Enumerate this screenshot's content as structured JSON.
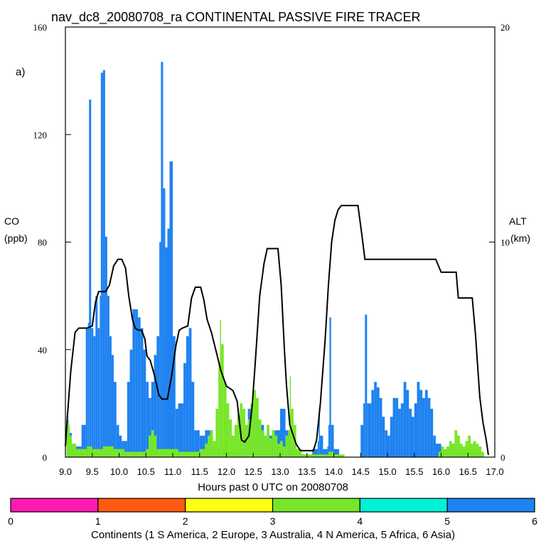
{
  "chart_data": {
    "type": "bar",
    "title": "nav_dc8_20080708_ra CONTINENTAL PASSIVE FIRE TRACER",
    "panel_label": "a)",
    "xlabel": "Hours past 0 UTC on 20080708",
    "ylabel_left": [
      "CO",
      "(ppb)"
    ],
    "ylabel_right": [
      "ALT",
      "(km)"
    ],
    "xlim": [
      9.0,
      17.0
    ],
    "ylim_left": [
      0,
      160
    ],
    "ylim_right": [
      0,
      20
    ],
    "x_ticks": [
      "9.0",
      "9.5",
      "10.0",
      "10.5",
      "11.0",
      "11.5",
      "12.0",
      "12.5",
      "13.0",
      "13.5",
      "14.0",
      "14.5",
      "15.0",
      "15.5",
      "16.0",
      "16.5",
      "17.0"
    ],
    "y_ticks_left": [
      "0",
      "40",
      "80",
      "120",
      "160"
    ],
    "y_ticks_right": [
      "0",
      "10",
      "20"
    ],
    "colors": {
      "asia": "#1e82f0",
      "n_america": "#78e628",
      "africa": "#00f0d8",
      "line": "#000000"
    },
    "series": [
      {
        "name": "CO Asia (ppb)",
        "color": "#1e82f0",
        "points": [
          [
            9.02,
            14
          ],
          [
            9.06,
            9
          ],
          [
            9.12,
            3
          ],
          [
            9.2,
            4
          ],
          [
            9.3,
            12
          ],
          [
            9.38,
            48
          ],
          [
            9.42,
            50
          ],
          [
            9.44,
            133
          ],
          [
            9.48,
            48
          ],
          [
            9.52,
            45
          ],
          [
            9.56,
            60
          ],
          [
            9.6,
            48
          ],
          [
            9.64,
            60
          ],
          [
            9.66,
            143
          ],
          [
            9.7,
            144
          ],
          [
            9.74,
            82
          ],
          [
            9.78,
            60
          ],
          [
            9.82,
            45
          ],
          [
            9.86,
            38
          ],
          [
            9.9,
            28
          ],
          [
            9.95,
            12
          ],
          [
            10.0,
            8
          ],
          [
            10.05,
            6
          ],
          [
            10.1,
            6
          ],
          [
            10.15,
            28
          ],
          [
            10.2,
            40
          ],
          [
            10.25,
            55
          ],
          [
            10.3,
            55
          ],
          [
            10.35,
            52
          ],
          [
            10.4,
            48
          ],
          [
            10.45,
            40
          ],
          [
            10.5,
            28
          ],
          [
            10.55,
            22
          ],
          [
            10.6,
            28
          ],
          [
            10.65,
            38
          ],
          [
            10.7,
            45
          ],
          [
            10.75,
            80
          ],
          [
            10.78,
            147
          ],
          [
            10.82,
            100
          ],
          [
            10.86,
            78
          ],
          [
            10.9,
            85
          ],
          [
            10.94,
            110
          ],
          [
            11.0,
            45
          ],
          [
            11.05,
            18
          ],
          [
            11.1,
            20
          ],
          [
            11.2,
            35
          ],
          [
            11.25,
            45
          ],
          [
            11.3,
            48
          ],
          [
            11.35,
            28
          ],
          [
            11.4,
            10
          ],
          [
            11.5,
            8
          ],
          [
            11.6,
            10
          ],
          [
            11.7,
            4
          ],
          [
            11.8,
            3
          ],
          [
            12.0,
            2
          ],
          [
            12.2,
            3
          ],
          [
            12.4,
            18
          ],
          [
            12.5,
            15
          ],
          [
            12.6,
            12
          ],
          [
            12.7,
            7
          ],
          [
            12.8,
            8
          ],
          [
            12.9,
            10
          ],
          [
            13.0,
            18
          ],
          [
            13.1,
            10
          ],
          [
            13.2,
            5
          ],
          [
            13.3,
            3
          ],
          [
            13.4,
            1
          ],
          [
            13.6,
            3
          ],
          [
            13.7,
            6
          ],
          [
            13.72,
            18
          ],
          [
            13.74,
            8
          ],
          [
            13.8,
            3
          ],
          [
            13.88,
            4
          ],
          [
            13.9,
            12
          ],
          [
            13.92,
            52
          ],
          [
            13.95,
            12
          ],
          [
            14.0,
            3
          ],
          [
            14.1,
            0
          ],
          [
            14.2,
            0
          ],
          [
            14.3,
            0
          ],
          [
            14.4,
            0
          ],
          [
            14.5,
            12
          ],
          [
            14.55,
            20
          ],
          [
            14.58,
            53
          ],
          [
            14.62,
            20
          ],
          [
            14.7,
            25
          ],
          [
            14.75,
            28
          ],
          [
            14.8,
            26
          ],
          [
            14.85,
            22
          ],
          [
            14.9,
            15
          ],
          [
            14.95,
            10
          ],
          [
            15.0,
            8
          ],
          [
            15.05,
            15
          ],
          [
            15.1,
            22
          ],
          [
            15.15,
            22
          ],
          [
            15.2,
            18
          ],
          [
            15.25,
            20
          ],
          [
            15.3,
            28
          ],
          [
            15.35,
            25
          ],
          [
            15.4,
            18
          ],
          [
            15.45,
            15
          ],
          [
            15.5,
            20
          ],
          [
            15.55,
            28
          ],
          [
            15.6,
            25
          ],
          [
            15.65,
            22
          ],
          [
            15.7,
            25
          ],
          [
            15.75,
            22
          ],
          [
            15.8,
            18
          ],
          [
            15.85,
            8
          ],
          [
            15.9,
            5
          ],
          [
            16.0,
            2
          ],
          [
            16.1,
            3
          ],
          [
            16.2,
            5
          ],
          [
            16.3,
            2
          ],
          [
            16.4,
            2
          ],
          [
            16.5,
            3
          ],
          [
            16.6,
            2
          ],
          [
            16.7,
            0
          ]
        ]
      },
      {
        "name": "CO N America (ppb)",
        "color": "#78e628",
        "points": [
          [
            9.02,
            16
          ],
          [
            9.05,
            12
          ],
          [
            9.08,
            8
          ],
          [
            9.12,
            5
          ],
          [
            9.2,
            3
          ],
          [
            9.3,
            3
          ],
          [
            9.4,
            4
          ],
          [
            9.5,
            3
          ],
          [
            9.7,
            4
          ],
          [
            9.9,
            3
          ],
          [
            10.1,
            2
          ],
          [
            10.3,
            2
          ],
          [
            10.5,
            3
          ],
          [
            10.55,
            8
          ],
          [
            10.6,
            10
          ],
          [
            10.65,
            8
          ],
          [
            10.7,
            3
          ],
          [
            10.9,
            3
          ],
          [
            11.1,
            2
          ],
          [
            11.3,
            2
          ],
          [
            11.5,
            3
          ],
          [
            11.6,
            5
          ],
          [
            11.65,
            8
          ],
          [
            11.7,
            10
          ],
          [
            11.75,
            6
          ],
          [
            11.8,
            18
          ],
          [
            11.85,
            35
          ],
          [
            11.88,
            51
          ],
          [
            11.9,
            42
          ],
          [
            11.95,
            28
          ],
          [
            12.0,
            20
          ],
          [
            12.05,
            14
          ],
          [
            12.1,
            8
          ],
          [
            12.15,
            12
          ],
          [
            12.2,
            16
          ],
          [
            12.25,
            20
          ],
          [
            12.3,
            18
          ],
          [
            12.35,
            12
          ],
          [
            12.4,
            14
          ],
          [
            12.45,
            20
          ],
          [
            12.5,
            25
          ],
          [
            12.55,
            22
          ],
          [
            12.6,
            14
          ],
          [
            12.65,
            10
          ],
          [
            12.7,
            8
          ],
          [
            12.75,
            12
          ],
          [
            12.8,
            7
          ],
          [
            12.85,
            10
          ],
          [
            12.9,
            8
          ],
          [
            12.95,
            5
          ],
          [
            13.0,
            6
          ],
          [
            13.05,
            4
          ],
          [
            13.1,
            8
          ],
          [
            13.15,
            10
          ],
          [
            13.18,
            30
          ],
          [
            13.2,
            18
          ],
          [
            13.25,
            12
          ],
          [
            13.3,
            3
          ],
          [
            13.4,
            1
          ],
          [
            13.6,
            1
          ],
          [
            13.8,
            1
          ],
          [
            13.9,
            2
          ],
          [
            14.0,
            1
          ],
          [
            14.2,
            0
          ],
          [
            14.5,
            0
          ],
          [
            15.0,
            0
          ],
          [
            15.5,
            0
          ],
          [
            15.8,
            0
          ],
          [
            15.95,
            2
          ],
          [
            16.0,
            4
          ],
          [
            16.05,
            3
          ],
          [
            16.1,
            4
          ],
          [
            16.15,
            6
          ],
          [
            16.2,
            5
          ],
          [
            16.25,
            10
          ],
          [
            16.3,
            8
          ],
          [
            16.35,
            5
          ],
          [
            16.4,
            4
          ],
          [
            16.45,
            6
          ],
          [
            16.5,
            8
          ],
          [
            16.55,
            5
          ],
          [
            16.6,
            6
          ],
          [
            16.65,
            5
          ],
          [
            16.7,
            4
          ],
          [
            16.75,
            2
          ],
          [
            16.8,
            0
          ]
        ]
      },
      {
        "name": "Altitude (km)",
        "type": "line",
        "color": "#000000",
        "points": [
          [
            9.0,
            0.5
          ],
          [
            9.04,
            2.0
          ],
          [
            9.1,
            4.0
          ],
          [
            9.18,
            5.8
          ],
          [
            9.25,
            6.0
          ],
          [
            9.4,
            6.0
          ],
          [
            9.5,
            6.1
          ],
          [
            9.56,
            7.2
          ],
          [
            9.62,
            7.7
          ],
          [
            9.75,
            7.7
          ],
          [
            9.82,
            8.0
          ],
          [
            9.9,
            8.9
          ],
          [
            9.98,
            9.2
          ],
          [
            10.05,
            9.2
          ],
          [
            10.12,
            8.8
          ],
          [
            10.18,
            7.5
          ],
          [
            10.25,
            6.4
          ],
          [
            10.3,
            6.0
          ],
          [
            10.36,
            5.9
          ],
          [
            10.42,
            5.9
          ],
          [
            10.48,
            5.5
          ],
          [
            10.52,
            4.7
          ],
          [
            10.58,
            4.5
          ],
          [
            10.66,
            3.8
          ],
          [
            10.74,
            2.9
          ],
          [
            10.8,
            2.7
          ],
          [
            10.9,
            2.7
          ],
          [
            10.98,
            3.8
          ],
          [
            11.06,
            5.2
          ],
          [
            11.12,
            5.9
          ],
          [
            11.18,
            6.0
          ],
          [
            11.28,
            6.1
          ],
          [
            11.35,
            7.4
          ],
          [
            11.42,
            7.9
          ],
          [
            11.52,
            7.9
          ],
          [
            11.58,
            7.3
          ],
          [
            11.64,
            6.4
          ],
          [
            11.72,
            5.8
          ],
          [
            11.8,
            5.0
          ],
          [
            11.9,
            4.0
          ],
          [
            12.0,
            3.3
          ],
          [
            12.06,
            3.2
          ],
          [
            12.12,
            3.1
          ],
          [
            12.2,
            2.6
          ],
          [
            12.28,
            0.8
          ],
          [
            12.34,
            0.7
          ],
          [
            12.42,
            1.0
          ],
          [
            12.48,
            2.4
          ],
          [
            12.54,
            4.5
          ],
          [
            12.62,
            7.5
          ],
          [
            12.7,
            9.0
          ],
          [
            12.76,
            9.7
          ],
          [
            12.96,
            9.7
          ],
          [
            13.02,
            8.0
          ],
          [
            13.08,
            5.0
          ],
          [
            13.12,
            3.3
          ],
          [
            13.18,
            1.5
          ],
          [
            13.3,
            0.6
          ],
          [
            13.38,
            0.3
          ],
          [
            13.62,
            0.3
          ],
          [
            13.68,
            0.8
          ],
          [
            13.75,
            2.5
          ],
          [
            13.84,
            5.5
          ],
          [
            13.9,
            8.0
          ],
          [
            13.96,
            10.0
          ],
          [
            14.02,
            11.0
          ],
          [
            14.08,
            11.5
          ],
          [
            14.14,
            11.7
          ],
          [
            14.45,
            11.7
          ],
          [
            14.52,
            10.4
          ],
          [
            14.58,
            9.2
          ],
          [
            15.9,
            9.2
          ],
          [
            16.0,
            8.6
          ],
          [
            16.28,
            8.6
          ],
          [
            16.32,
            7.4
          ],
          [
            16.58,
            7.4
          ],
          [
            16.64,
            5.7
          ],
          [
            16.72,
            2.8
          ],
          [
            16.78,
            1.6
          ],
          [
            16.84,
            0.8
          ],
          [
            16.88,
            0.1
          ]
        ]
      }
    ],
    "colorbar": {
      "label": "Continents (1 S America, 2 Europe, 3 Australia, 4 N America, 5 Africa, 6 Asia)",
      "ticks": [
        "0",
        "1",
        "2",
        "3",
        "4",
        "5",
        "6"
      ],
      "colors": [
        "#ff1ab4",
        "#ff5a10",
        "#ffff14",
        "#78e628",
        "#00f0d8",
        "#1e82f0"
      ]
    }
  }
}
